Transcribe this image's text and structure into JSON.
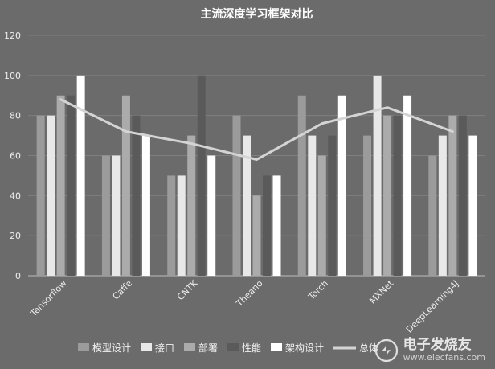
{
  "chart_data": {
    "type": "bar",
    "title": "主流深度学习框架对比",
    "categories": [
      "Tensorflow",
      "Caffe",
      "CNTK",
      "Theano",
      "Torch",
      "MXNet",
      "DeepLearning4J"
    ],
    "ylim": [
      0,
      120
    ],
    "yticks": [
      0,
      20,
      40,
      60,
      80,
      100,
      120
    ],
    "grid": true,
    "legend_position": "bottom",
    "series": [
      {
        "name": "模型设计",
        "type": "bar",
        "color": "#9b9b9b",
        "values": [
          80,
          60,
          50,
          80,
          90,
          70,
          60
        ]
      },
      {
        "name": "接口",
        "type": "bar",
        "color": "#e8e8e8",
        "values": [
          80,
          60,
          50,
          70,
          70,
          100,
          70
        ]
      },
      {
        "name": "部署",
        "type": "bar",
        "color": "#ababab",
        "values": [
          90,
          90,
          70,
          40,
          60,
          80,
          80
        ]
      },
      {
        "name": "性能",
        "type": "bar",
        "color": "#5a5a5a",
        "values": [
          90,
          80,
          100,
          50,
          70,
          80,
          80
        ]
      },
      {
        "name": "架构设计",
        "type": "bar",
        "color": "#ffffff",
        "values": [
          100,
          70,
          60,
          50,
          90,
          90,
          70
        ]
      },
      {
        "name": "总体",
        "type": "line",
        "color": "#d4d4d4",
        "values": [
          88,
          72,
          66,
          58,
          76,
          84,
          72
        ]
      }
    ]
  },
  "watermark": {
    "name": "电子发烧友",
    "url": "www.elecfans.com",
    "partial_legend_text": "总体"
  }
}
